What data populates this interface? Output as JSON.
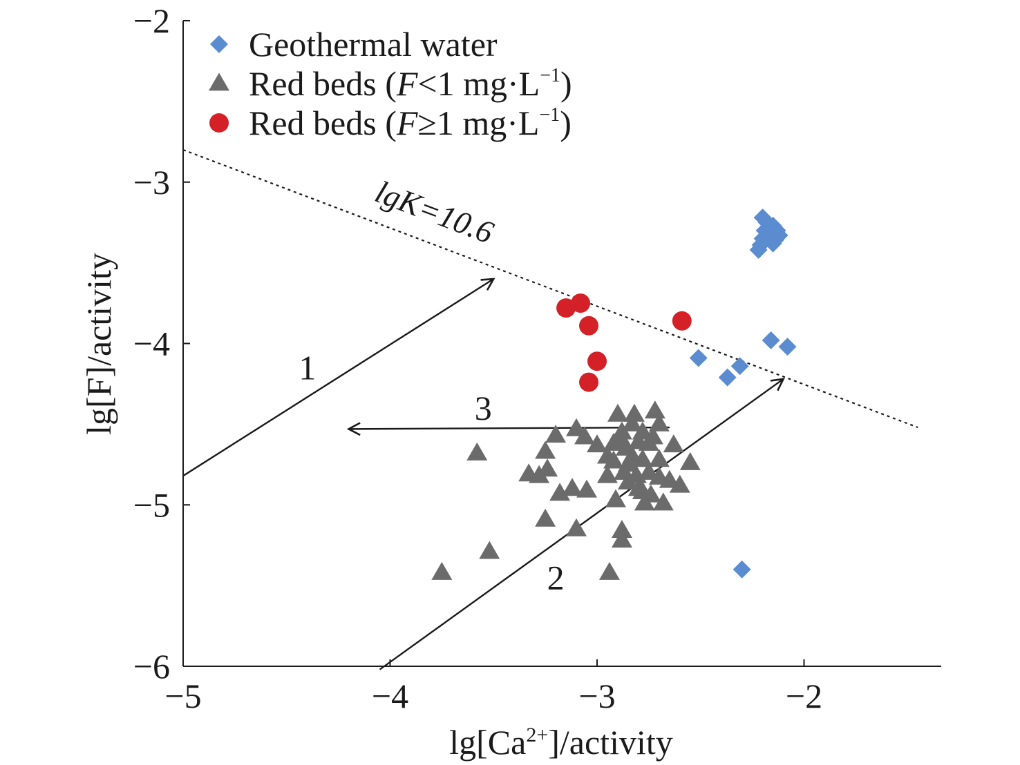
{
  "chart_data": {
    "type": "scatter",
    "xlabel": {
      "base": "lg[Ca",
      "sup": "2+",
      "tail": "]/activity"
    },
    "ylabel": "lg[F]/activity",
    "xlim": [
      -5,
      -1.35
    ],
    "ylim": [
      -6,
      -2
    ],
    "xticks": [
      -5,
      -4,
      -3,
      -2
    ],
    "yticks": [
      -6,
      -5,
      -4,
      -3,
      -2
    ],
    "tick_labels_x": [
      "−5",
      "−4",
      "−3",
      "−2"
    ],
    "tick_labels_y": [
      "−6",
      "−5",
      "−4",
      "−3",
      "−2"
    ],
    "grid": false,
    "legend_position": "top-left",
    "series": [
      {
        "name": "Geothermal water",
        "legend": {
          "pre": "Geothermal water"
        },
        "marker": "diamond",
        "color": "#5b8ccf",
        "points": [
          [
            -2.2,
            -3.22
          ],
          [
            -2.18,
            -3.25
          ],
          [
            -2.15,
            -3.27
          ],
          [
            -2.13,
            -3.3
          ],
          [
            -2.12,
            -3.33
          ],
          [
            -2.19,
            -3.3
          ],
          [
            -2.16,
            -3.32
          ],
          [
            -2.2,
            -3.35
          ],
          [
            -2.14,
            -3.36
          ],
          [
            -2.21,
            -3.39
          ],
          [
            -2.22,
            -3.42
          ],
          [
            -2.17,
            -3.28
          ],
          [
            -2.15,
            -3.38
          ],
          [
            -2.16,
            -3.98
          ],
          [
            -2.08,
            -4.02
          ],
          [
            -2.51,
            -4.09
          ],
          [
            -2.31,
            -4.14
          ],
          [
            -2.37,
            -4.21
          ],
          [
            -2.3,
            -5.4
          ]
        ]
      },
      {
        "name": "Red beds (F<1 mg·L−1)",
        "legend": {
          "pre": "Red beds (",
          "italic": "F",
          "mid": "<1 mg·L",
          "sup": "−1",
          "post": ")"
        },
        "marker": "triangle",
        "color": "#6b6b6b",
        "points": [
          [
            -3.75,
            -5.42
          ],
          [
            -3.58,
            -4.68
          ],
          [
            -3.52,
            -5.29
          ],
          [
            -3.33,
            -4.81
          ],
          [
            -3.28,
            -4.82
          ],
          [
            -3.25,
            -4.67
          ],
          [
            -3.24,
            -4.78
          ],
          [
            -3.25,
            -5.09
          ],
          [
            -3.2,
            -4.57
          ],
          [
            -3.18,
            -4.93
          ],
          [
            -3.12,
            -4.9
          ],
          [
            -3.1,
            -5.15
          ],
          [
            -3.1,
            -4.53
          ],
          [
            -3.06,
            -4.58
          ],
          [
            -3.05,
            -4.91
          ],
          [
            -3.0,
            -4.63
          ],
          [
            -2.95,
            -4.82
          ],
          [
            -2.95,
            -4.7
          ],
          [
            -2.94,
            -5.42
          ],
          [
            -2.92,
            -4.73
          ],
          [
            -2.91,
            -4.97
          ],
          [
            -2.9,
            -4.44
          ],
          [
            -2.88,
            -5.16
          ],
          [
            -2.88,
            -5.22
          ],
          [
            -2.88,
            -4.6
          ],
          [
            -2.87,
            -4.8
          ],
          [
            -2.86,
            -4.65
          ],
          [
            -2.85,
            -4.75
          ],
          [
            -2.85,
            -4.86
          ],
          [
            -2.83,
            -4.5
          ],
          [
            -2.83,
            -4.7
          ],
          [
            -2.82,
            -4.44
          ],
          [
            -2.81,
            -4.82
          ],
          [
            -2.8,
            -4.61
          ],
          [
            -2.8,
            -4.9
          ],
          [
            -2.78,
            -4.55
          ],
          [
            -2.78,
            -4.72
          ],
          [
            -2.77,
            -4.99
          ],
          [
            -2.75,
            -4.62
          ],
          [
            -2.75,
            -4.8
          ],
          [
            -2.74,
            -4.94
          ],
          [
            -2.72,
            -4.42
          ],
          [
            -2.7,
            -4.5
          ],
          [
            -2.7,
            -4.72
          ],
          [
            -2.7,
            -4.83
          ],
          [
            -2.68,
            -4.99
          ],
          [
            -2.65,
            -4.85
          ],
          [
            -2.63,
            -4.63
          ],
          [
            -2.6,
            -4.88
          ],
          [
            -2.55,
            -4.74
          ],
          [
            -2.88,
            -4.55
          ],
          [
            -2.78,
            -4.92
          ],
          [
            -2.92,
            -4.62
          ],
          [
            -2.73,
            -4.58
          ]
        ]
      },
      {
        "name": "Red beds (F≥1 mg·L−1)",
        "legend": {
          "pre": "Red beds (",
          "italic": "F",
          "mid": "≥1 mg·L",
          "sup": "−1",
          "post": ")"
        },
        "marker": "circle",
        "color": "#d42127",
        "points": [
          [
            -3.15,
            -3.78
          ],
          [
            -3.08,
            -3.75
          ],
          [
            -3.04,
            -3.89
          ],
          [
            -3.0,
            -4.11
          ],
          [
            -3.04,
            -4.24
          ],
          [
            -2.59,
            -3.86
          ]
        ]
      }
    ],
    "reference_line": {
      "label_pre": "lg",
      "label_italic": "K",
      "label_post": "=10.6",
      "points": [
        [
          -5,
          -2.8
        ],
        [
          -1.45,
          -4.52
        ]
      ]
    },
    "arrows": [
      {
        "label": "1",
        "from": [
          -5,
          -4.82
        ],
        "to": [
          -3.5,
          -3.6
        ],
        "label_at": [
          -4.4,
          -4.15
        ]
      },
      {
        "label": "2",
        "from": [
          -4.05,
          -6.02
        ],
        "to": [
          -2.1,
          -4.22
        ],
        "label_at": [
          -3.2,
          -5.45
        ]
      },
      {
        "label": "3",
        "from": [
          -2.65,
          -4.52
        ],
        "to": [
          -4.2,
          -4.53
        ],
        "label_at": [
          -3.55,
          -4.4
        ]
      }
    ]
  }
}
